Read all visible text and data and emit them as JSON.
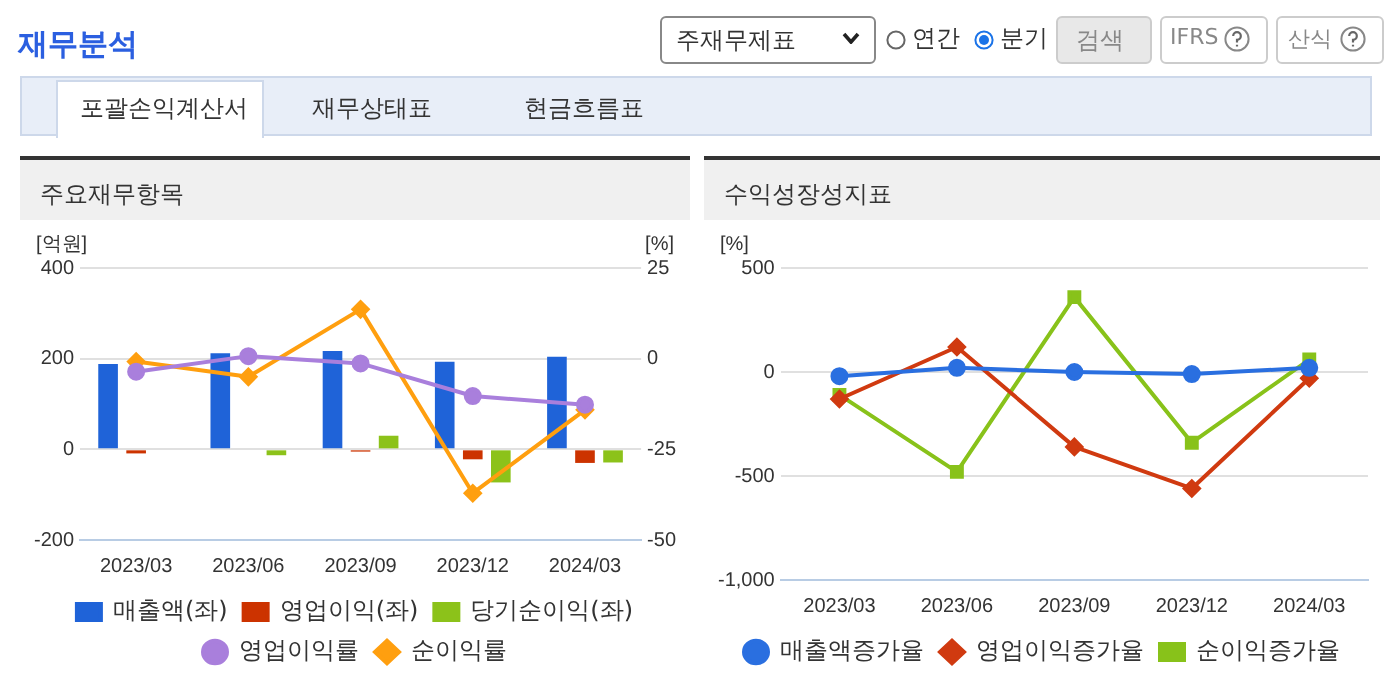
{
  "chart_data": [
    {
      "type": "bar",
      "title": "주요재무항목",
      "ylabel": "[억원]",
      "y2label": "[%]",
      "categories": [
        "2023/03",
        "2023/06",
        "2023/09",
        "2023/12",
        "2024/03"
      ],
      "series": [
        {
          "name": "매출액(좌)",
          "color": "#1f63d8",
          "values": [
            188,
            212,
            217,
            193,
            204
          ]
        },
        {
          "name": "영업이익(좌)",
          "color": "#cc3300",
          "values": [
            -9,
            0,
            -5,
            -22,
            -30
          ]
        },
        {
          "name": "당기순이익(좌)",
          "color": "#8cc21a",
          "values": [
            0,
            -13,
            30,
            -73,
            -29
          ]
        },
        {
          "name": "영업이익률",
          "type": "line",
          "axis": "y2",
          "marker": "circle",
          "color": "#a97fdc",
          "values": [
            -3.6,
            0.7,
            -1.3,
            -10.3,
            -12.7
          ]
        },
        {
          "name": "순이익률",
          "type": "line",
          "axis": "y2",
          "marker": "diamond",
          "color": "#ff9f0f",
          "values": [
            -0.8,
            -5.0,
            13.6,
            -37.1,
            -14.1
          ]
        }
      ],
      "ylim": [
        -200,
        400
      ],
      "yticks": [
        -200,
        0,
        200,
        400
      ],
      "y2lim": [
        -50,
        25
      ],
      "y2ticks": [
        -50,
        -25,
        0,
        25
      ],
      "grid": "y",
      "legend": "bottom",
      "line_style": "solid",
      "annotations": [
        "재무분석",
        "주재무제표",
        "연간",
        "분기",
        "검색",
        "IFRS",
        "산식",
        "포괄손익계산서",
        "재무상태표",
        "현금흐름표"
      ]
    },
    {
      "type": "line",
      "title": "수익성장성지표",
      "ylabel": "[%]",
      "categories": [
        "2023/03",
        "2023/06",
        "2023/09",
        "2023/12",
        "2024/03"
      ],
      "series": [
        {
          "name": "매출액증가율",
          "marker": "circle",
          "color": "#2a6fe0",
          "values": [
            -20,
            20,
            0,
            -10,
            20
          ]
        },
        {
          "name": "영업이익증가율",
          "marker": "diamond",
          "color": "#d03a10",
          "values": [
            -130,
            120,
            -360,
            -560,
            -30
          ]
        },
        {
          "name": "순이익증가율",
          "marker": "square",
          "color": "#88c21a",
          "values": [
            -110,
            -480,
            360,
            -340,
            60
          ]
        }
      ],
      "ylim": [
        -1000,
        500
      ],
      "yticks": [
        {
          "value": -1000,
          "label": "-1,000"
        },
        -500,
        0,
        500
      ],
      "grid": "y",
      "legend": "bottom",
      "line_style": "solid"
    }
  ]
}
